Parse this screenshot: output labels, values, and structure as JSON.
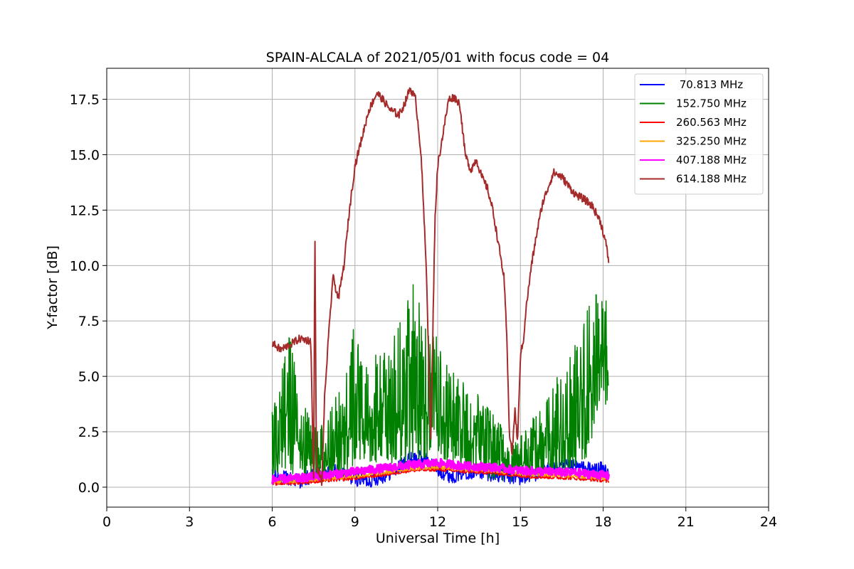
{
  "chart_data": {
    "type": "line",
    "title": "SPAIN-ALCALA of 2021/05/01 with focus code = 04",
    "xlabel": "Universal Time [h]",
    "ylabel": "Y-factor [dB]",
    "xlim": [
      0,
      24
    ],
    "ylim": [
      -0.9,
      18.9
    ],
    "xticks": [
      0,
      3,
      6,
      9,
      12,
      15,
      18,
      21,
      24
    ],
    "xtick_labels": [
      "0",
      "3",
      "6",
      "9",
      "12",
      "15",
      "18",
      "21",
      "24"
    ],
    "yticks": [
      0,
      2.5,
      5,
      7.5,
      10,
      12.5,
      15,
      17.5
    ],
    "ytick_labels": [
      "0.0",
      "2.5",
      "5.0",
      "7.5",
      "10.0",
      "12.5",
      "15.0",
      "17.5"
    ],
    "grid": true,
    "legend_position": "top-right",
    "series": [
      {
        "name": " 70.813 MHz",
        "color": "#0000ff",
        "x": [
          6.0,
          6.5,
          7.0,
          7.5,
          8.0,
          8.5,
          9.0,
          9.5,
          10.0,
          10.5,
          11.0,
          11.5,
          12.0,
          12.5,
          13.0,
          13.5,
          14.0,
          14.5,
          15.0,
          15.5,
          16.0,
          16.5,
          17.0,
          17.5,
          18.0,
          18.2
        ],
        "y": [
          0.5,
          0.4,
          0.3,
          0.5,
          0.8,
          0.6,
          0.4,
          0.3,
          0.5,
          0.8,
          1.3,
          1.3,
          0.8,
          0.5,
          0.7,
          0.7,
          0.6,
          0.5,
          0.4,
          0.6,
          0.8,
          0.9,
          0.9,
          0.8,
          0.8,
          0.7
        ]
      },
      {
        "name": "152.750 MHz",
        "color": "#008000",
        "x": [
          6.0,
          6.3,
          6.6,
          7.0,
          7.3,
          7.6,
          8.0,
          8.3,
          8.6,
          9.0,
          9.3,
          9.6,
          10.0,
          10.3,
          10.6,
          11.0,
          11.3,
          11.6,
          12.0,
          12.3,
          12.6,
          13.0,
          13.3,
          13.6,
          14.0,
          14.3,
          14.6,
          15.0,
          15.3,
          15.6,
          16.0,
          16.3,
          16.6,
          17.0,
          17.3,
          17.6,
          18.0,
          18.2
        ],
        "y": [
          1.5,
          2.5,
          3.0,
          2.0,
          1.5,
          1.0,
          1.5,
          1.8,
          2.0,
          3.5,
          3.2,
          2.8,
          2.8,
          3.0,
          3.5,
          4.0,
          3.8,
          3.5,
          3.2,
          2.8,
          2.5,
          2.2,
          2.0,
          1.8,
          1.5,
          1.2,
          1.0,
          1.0,
          1.2,
          1.5,
          2.0,
          2.2,
          2.5,
          3.0,
          3.5,
          4.5,
          6.0,
          5.0
        ],
        "amplitude": [
          1.2,
          1.8,
          2.5,
          1.5,
          1.2,
          1.0,
          1.2,
          1.5,
          1.8,
          2.5,
          2.2,
          2.0,
          2.0,
          2.2,
          2.5,
          3.5,
          3.0,
          2.5,
          2.2,
          2.0,
          1.8,
          1.6,
          1.5,
          1.4,
          1.2,
          1.0,
          0.8,
          0.8,
          1.0,
          1.2,
          1.5,
          1.8,
          2.0,
          2.2,
          2.5,
          2.8,
          1.8,
          2.5
        ]
      },
      {
        "name": "260.563 MHz",
        "color": "#ff0000",
        "x": [
          6.0,
          7.0,
          8.0,
          9.0,
          10.0,
          11.0,
          12.0,
          13.0,
          14.0,
          15.0,
          16.0,
          17.0,
          18.0,
          18.2
        ],
        "y": [
          0.15,
          0.2,
          0.3,
          0.4,
          0.55,
          0.75,
          0.8,
          0.7,
          0.65,
          0.5,
          0.45,
          0.4,
          0.3,
          0.25
        ]
      },
      {
        "name": "325.250 MHz",
        "color": "#ffa500",
        "x": [
          6.0,
          7.0,
          8.0,
          9.0,
          10.0,
          11.0,
          12.0,
          13.0,
          14.0,
          15.0,
          16.0,
          17.0,
          18.0,
          18.2
        ],
        "y": [
          0.25,
          0.3,
          0.4,
          0.5,
          0.65,
          0.85,
          0.9,
          0.8,
          0.75,
          0.6,
          0.55,
          0.5,
          0.4,
          0.35
        ]
      },
      {
        "name": "407.188 MHz",
        "color": "#ff00ff",
        "x": [
          6.0,
          7.0,
          8.0,
          9.0,
          10.0,
          11.0,
          12.0,
          13.0,
          14.0,
          15.0,
          16.0,
          17.0,
          18.0,
          18.2
        ],
        "y": [
          0.35,
          0.4,
          0.55,
          0.7,
          0.85,
          1.0,
          1.1,
          0.95,
          0.9,
          0.75,
          0.7,
          0.65,
          0.55,
          0.5
        ]
      },
      {
        "name": "614.188 MHz",
        "color": "#a52a2a",
        "x": [
          6.0,
          6.3,
          6.6,
          7.0,
          7.4,
          7.5,
          7.55,
          7.6,
          7.8,
          7.9,
          8.0,
          8.2,
          8.4,
          8.6,
          8.8,
          9.0,
          9.2,
          9.5,
          9.8,
          10.0,
          10.3,
          10.6,
          10.8,
          11.0,
          11.2,
          11.4,
          11.6,
          11.75,
          11.9,
          12.0,
          12.2,
          12.4,
          12.6,
          12.8,
          13.0,
          13.2,
          13.4,
          13.6,
          13.8,
          14.0,
          14.2,
          14.4,
          14.5,
          14.6,
          14.7,
          14.8,
          14.9,
          15.0,
          15.1,
          15.2,
          15.4,
          15.6,
          15.8,
          16.0,
          16.2,
          16.5,
          16.8,
          17.0,
          17.3,
          17.6,
          17.9,
          18.1,
          18.2
        ],
        "y": [
          6.5,
          6.2,
          6.4,
          6.7,
          6.6,
          0.3,
          11.5,
          1.0,
          0.2,
          4.0,
          6.0,
          9.5,
          8.5,
          10.0,
          12.5,
          14.5,
          15.5,
          17.0,
          17.8,
          17.5,
          17.0,
          16.8,
          17.3,
          18.0,
          17.5,
          15.0,
          9.5,
          2.0,
          12.0,
          14.5,
          16.0,
          17.5,
          17.6,
          17.3,
          15.0,
          14.3,
          14.8,
          14.0,
          13.5,
          12.5,
          11.0,
          9.5,
          7.0,
          2.5,
          1.5,
          3.5,
          2.0,
          6.0,
          6.5,
          8.0,
          10.0,
          11.5,
          12.8,
          13.5,
          14.2,
          14.0,
          13.5,
          13.2,
          13.0,
          12.7,
          12.0,
          11.0,
          10.2
        ]
      }
    ]
  }
}
